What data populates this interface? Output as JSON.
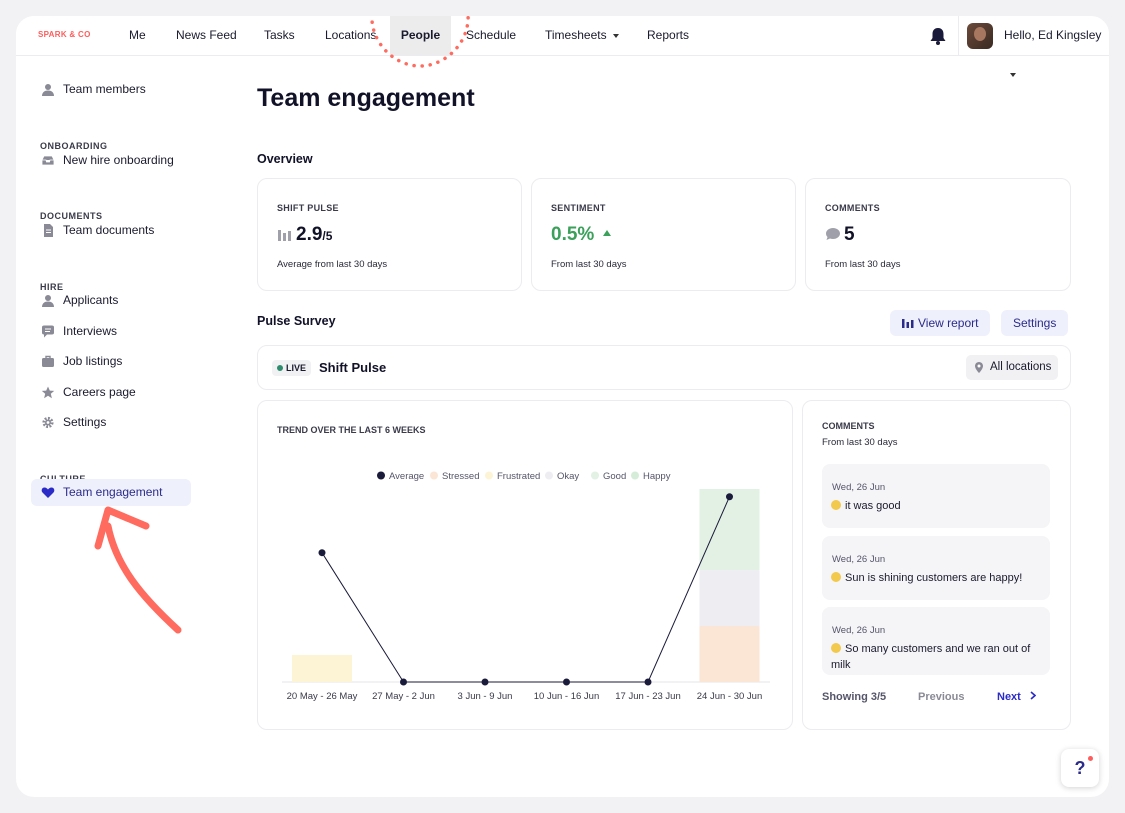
{
  "brand": "SPARK & CO",
  "nav": {
    "items": [
      "Me",
      "News Feed",
      "Tasks",
      "Locations",
      "People",
      "Schedule",
      "Timesheets",
      "Reports"
    ],
    "active": "People",
    "greeting": "Hello, Ed Kingsley"
  },
  "sidebar": {
    "team_members": "Team members",
    "onboarding_head": "ONBOARDING",
    "new_hire": "New hire onboarding",
    "documents_head": "DOCUMENTS",
    "team_documents": "Team documents",
    "hire_head": "HIRE",
    "applicants": "Applicants",
    "interviews": "Interviews",
    "job_listings": "Job listings",
    "careers_page": "Careers page",
    "settings": "Settings",
    "culture_head": "CULTURE",
    "team_engagement": "Team engagement"
  },
  "page": {
    "title": "Team engagement",
    "overview": "Overview",
    "pulse_survey": "Pulse Survey"
  },
  "cards": {
    "shift_pulse": {
      "label": "SHIFT PULSE",
      "value": "2.9",
      "denominator": "/5",
      "sub": "Average from last 30 days"
    },
    "sentiment": {
      "label": "SENTIMENT",
      "value": "0.5%",
      "sub": "From last 30 days",
      "color": "#3aa05a"
    },
    "comments": {
      "label": "COMMENTS",
      "value": "5",
      "sub": "From last 30 days"
    }
  },
  "buttons": {
    "view_report": "View report",
    "settings": "Settings"
  },
  "survey": {
    "live": "LIVE",
    "name": "Shift Pulse",
    "locations": "All locations"
  },
  "chart_data": {
    "type": "bar",
    "title": "TREND OVER THE LAST 6 WEEKS",
    "categories": [
      "20 May - 26 May",
      "27 May - 2 Jun",
      "3 Jun - 9 Jun",
      "10 Jun - 16 Jun",
      "17 Jun - 23 Jun",
      "24 Jun - 30 Jun"
    ],
    "legend": [
      "Average",
      "Stressed",
      "Frustrated",
      "Okay",
      "Good",
      "Happy"
    ],
    "colors": {
      "Average": "#1a1a3a",
      "Stressed": "#fbe6d6",
      "Frustrated": "#fdf4d6",
      "Okay": "#eeeef2",
      "Good": "#e2f1e4",
      "Happy": "#d5edd8"
    },
    "series": [
      {
        "name": "Stressed",
        "values": [
          0,
          0,
          0,
          0,
          0,
          0.29
        ]
      },
      {
        "name": "Frustrated",
        "values": [
          0.14,
          0,
          0,
          0,
          0,
          0
        ]
      },
      {
        "name": "Okay",
        "values": [
          0,
          0,
          0,
          0,
          0,
          0.29
        ]
      },
      {
        "name": "Good",
        "values": [
          0,
          0,
          0,
          0,
          0,
          0.42
        ]
      },
      {
        "name": "Happy",
        "values": [
          0,
          0,
          0,
          0,
          0,
          0
        ]
      }
    ],
    "average": [
      0.67,
      0,
      0,
      0,
      0,
      0.96
    ],
    "ylim": [
      0,
      1
    ]
  },
  "comments": {
    "label": "COMMENTS",
    "sub": "From last 30 days",
    "items": [
      {
        "date": "Wed, 26 Jun",
        "text": "it was good"
      },
      {
        "date": "Wed, 26 Jun",
        "text": "Sun is shining customers are happy!"
      },
      {
        "date": "Wed, 26 Jun",
        "text": "So many customers and we ran out of milk"
      }
    ],
    "showing": "Showing 3/5",
    "previous": "Previous",
    "next": "Next"
  },
  "help": "?"
}
